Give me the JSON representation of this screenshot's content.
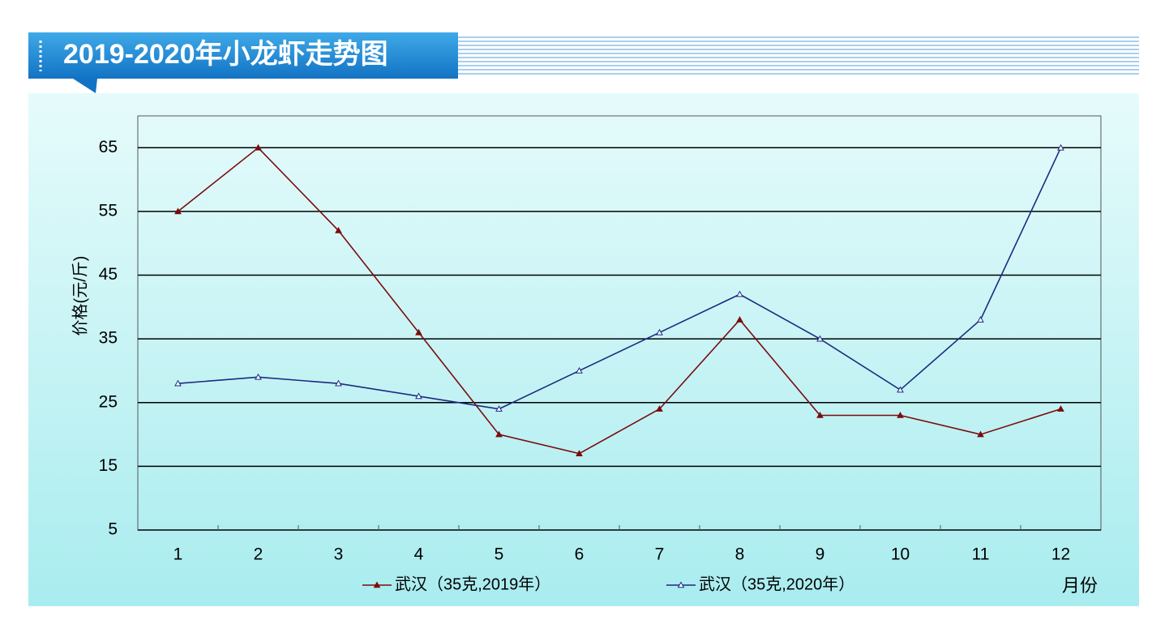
{
  "chart_data": {
    "type": "line",
    "title": "2019-2020年小龙虾走势图",
    "y_label": "价格(元/斤)",
    "x_label": "月份",
    "categories": [
      "1",
      "2",
      "3",
      "4",
      "5",
      "6",
      "7",
      "8",
      "9",
      "10",
      "11",
      "12"
    ],
    "series": [
      {
        "name": "武汉（35克,2019年）",
        "color": "#7a0c0c",
        "marker": "filled-triangle",
        "values": [
          55,
          65,
          52,
          36,
          20,
          17,
          24,
          38,
          23,
          23,
          20,
          24
        ]
      },
      {
        "name": "武汉（35克,2020年）",
        "color": "#1c2a80",
        "marker": "open-triangle",
        "values": [
          28,
          29,
          28,
          26,
          24,
          30,
          36,
          42,
          35,
          27,
          38,
          65
        ]
      }
    ],
    "ylim": [
      5,
      70
    ],
    "yticks": [
      5,
      15,
      25,
      35,
      45,
      55,
      65
    ],
    "grid": true
  }
}
